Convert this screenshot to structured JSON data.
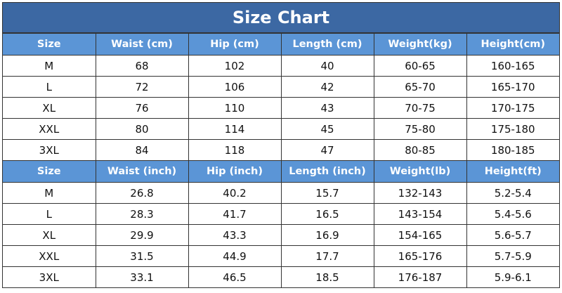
{
  "title": "Size Chart",
  "colors": {
    "title_bg": "#3c68a3",
    "header_bg": "#5b95d6"
  },
  "sections": [
    {
      "headers": [
        "Size",
        "Waist  (cm)",
        "Hip  (cm)",
        "Length  (cm)",
        "Weight(kg)",
        "Height(cm)"
      ],
      "rows": [
        [
          "M",
          "68",
          "102",
          "40",
          "60-65",
          "160-165"
        ],
        [
          "L",
          "72",
          "106",
          "42",
          "65-70",
          "165-170"
        ],
        [
          "XL",
          "76",
          "110",
          "43",
          "70-75",
          "170-175"
        ],
        [
          "XXL",
          "80",
          "114",
          "45",
          "75-80",
          "175-180"
        ],
        [
          "3XL",
          "84",
          "118",
          "47",
          "80-85",
          "180-185"
        ]
      ]
    },
    {
      "headers": [
        "Size",
        "Waist (inch)",
        "Hip (inch)",
        "Length (inch)",
        "Weight(lb)",
        "Height(ft)"
      ],
      "rows": [
        [
          "M",
          "26.8",
          "40.2",
          "15.7",
          "132-143",
          "5.2-5.4"
        ],
        [
          "L",
          "28.3",
          "41.7",
          "16.5",
          "143-154",
          "5.4-5.6"
        ],
        [
          "XL",
          "29.9",
          "43.3",
          "16.9",
          "154-165",
          "5.6-5.7"
        ],
        [
          "XXL",
          "31.5",
          "44.9",
          "17.7",
          "165-176",
          "5.7-5.9"
        ],
        [
          "3XL",
          "33.1",
          "46.5",
          "18.5",
          "176-187",
          "5.9-6.1"
        ]
      ]
    }
  ]
}
